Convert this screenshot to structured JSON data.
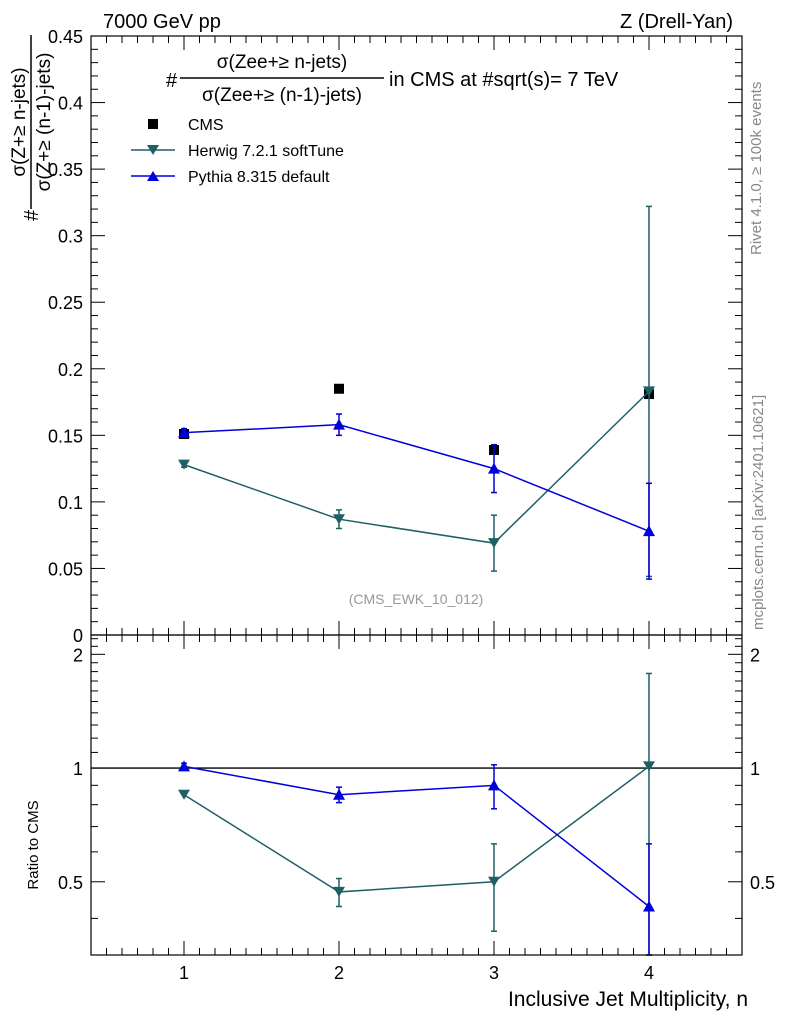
{
  "header": {
    "left": "7000 GeV pp",
    "right": "Z (Drell-Yan)"
  },
  "side": {
    "rivet": "Rivet 4.1.0, ≥ 100k events",
    "mcplots": "mcplots.cern.ch [arXiv:2401.10621]"
  },
  "title": {
    "prefix": "#",
    "numerator": "σ(Zee+≥ n-jets)",
    "denominator": "σ(Zee+≥ (n-1)-jets)",
    "suffix": "in CMS at #sqrt(s)= 7 TeV"
  },
  "ylabel": {
    "prefix": "#",
    "numerator": "σ(Z+≥ n-jets)",
    "denominator": "σ(Z+≥ (n-1)-jets)"
  },
  "watermark": "(CMS_EWK_10_012)",
  "xlabel": "Inclusive Jet Multiplicity, n",
  "ratio_ylabel": "Ratio to CMS",
  "colors": {
    "cms": "#000000",
    "herwig": "#1f5f66",
    "pythia": "#0000dd"
  },
  "chart_data": [
    {
      "type": "scatter",
      "panel": "main",
      "x": [
        1,
        2,
        3,
        4
      ],
      "xlim": [
        0.4,
        4.6
      ],
      "ylim": [
        0,
        0.45
      ],
      "yticks": [
        0,
        0.05,
        0.1,
        0.15,
        0.2,
        0.25,
        0.3,
        0.35,
        0.4,
        0.45
      ],
      "ytick_labels": [
        "0",
        "0.05",
        "0.1",
        "0.15",
        "0.2",
        "0.25",
        "0.3",
        "0.35",
        "0.4",
        "0.45"
      ],
      "legend_position": "top-left",
      "series": [
        {
          "name": "CMS",
          "marker": "square",
          "values": [
            0.151,
            0.185,
            0.139,
            0.181
          ],
          "err": [
            0,
            0,
            0,
            0
          ]
        },
        {
          "name": "Herwig 7.2.1 softTune",
          "marker": "triangle-down",
          "values": [
            0.128,
            0.087,
            0.069,
            0.183
          ],
          "err": [
            0.002,
            0.007,
            0.021,
            0.139
          ]
        },
        {
          "name": "Pythia 8.315 default",
          "marker": "triangle-up",
          "values": [
            0.152,
            0.158,
            0.125,
            0.078
          ],
          "err": [
            0.003,
            0.008,
            0.018,
            0.036
          ]
        }
      ]
    },
    {
      "type": "scatter",
      "panel": "ratio",
      "x": [
        1,
        2,
        3,
        4
      ],
      "xlim": [
        0.4,
        4.6
      ],
      "ylim": [
        0.32,
        2.25
      ],
      "yscale": "log",
      "yticks": [
        0.5,
        1,
        2
      ],
      "ytick_labels": [
        "0.5",
        "1",
        "2"
      ],
      "xticks": [
        1,
        2,
        3,
        4
      ],
      "xtick_labels": [
        "1",
        "2",
        "3",
        "4"
      ],
      "reference_line": 1,
      "series": [
        {
          "name": "Herwig 7.2.1 softTune",
          "marker": "triangle-down",
          "values": [
            0.85,
            0.47,
            0.5,
            1.01
          ],
          "err_low": [
            0.01,
            0.04,
            0.13,
            0.75
          ],
          "err_high": [
            0.01,
            0.04,
            0.13,
            0.77
          ]
        },
        {
          "name": "Pythia 8.315 default",
          "marker": "triangle-up",
          "values": [
            1.01,
            0.85,
            0.9,
            0.43
          ],
          "err_low": [
            0.02,
            0.04,
            0.12,
            0.2
          ],
          "err_high": [
            0.02,
            0.04,
            0.12,
            0.2
          ]
        }
      ]
    }
  ]
}
